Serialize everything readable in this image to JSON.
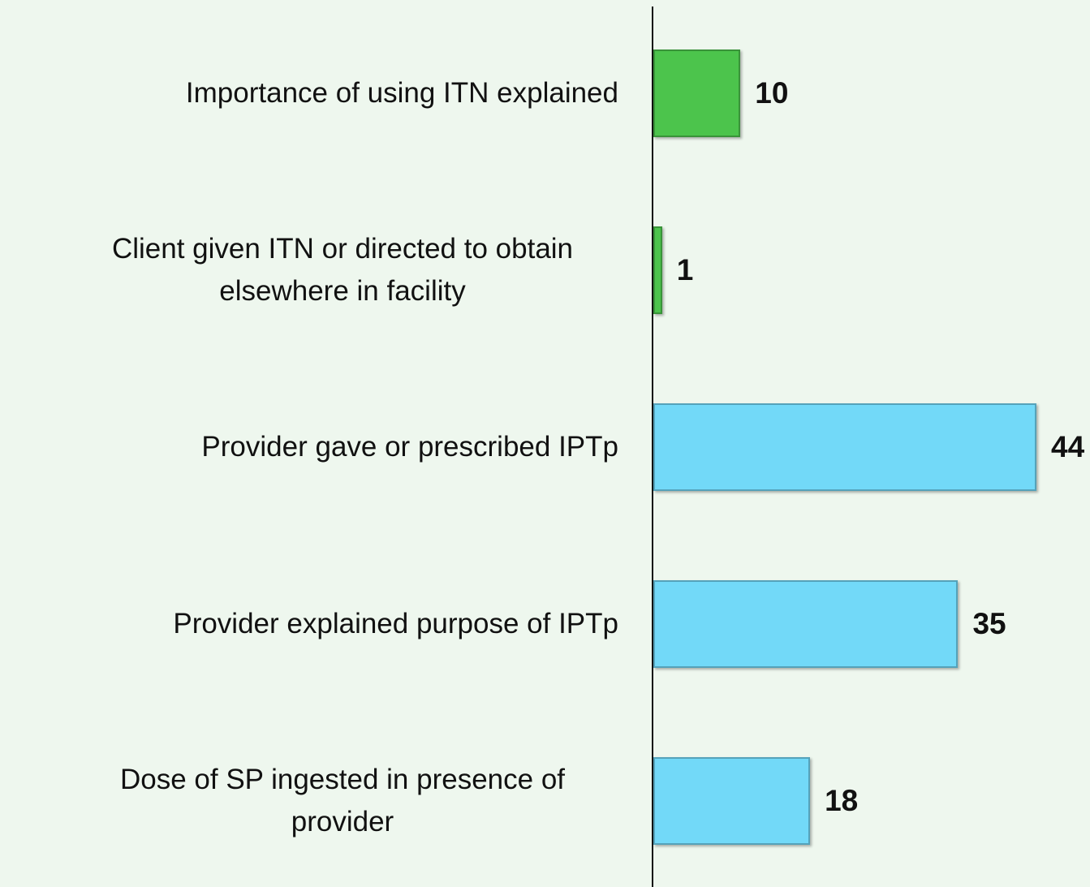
{
  "chart_data": {
    "type": "bar",
    "orientation": "horizontal",
    "categories": [
      "Importance of using ITN explained",
      "Client given ITN or directed to obtain elsewhere in facility",
      "Provider gave or prescribed IPTp",
      "Provider explained purpose of IPTp",
      "Dose of SP ingested in presence of provider"
    ],
    "values": [
      10,
      1,
      44,
      35,
      18
    ],
    "colors": [
      "#4cc44c",
      "#4cc44c",
      "#72d9f8",
      "#72d9f8",
      "#72d9f8"
    ],
    "grid": false
  }
}
